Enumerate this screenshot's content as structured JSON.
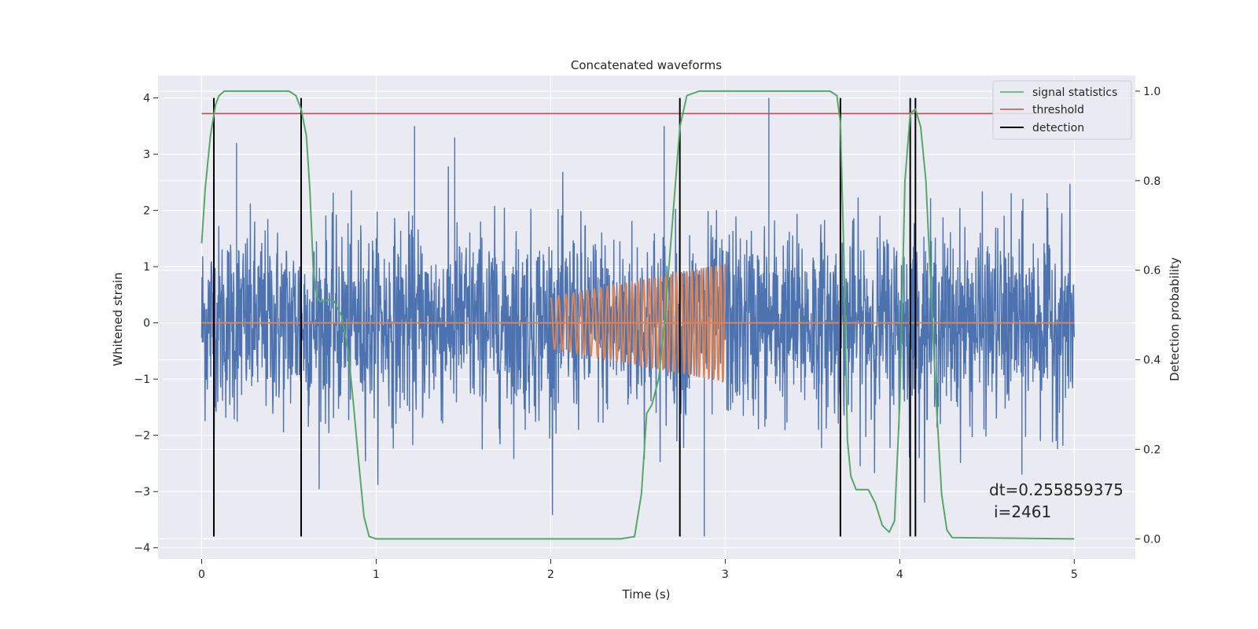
{
  "chart_data": {
    "type": "line",
    "title": "Concatenated waveforms",
    "xlabel": "Time (s)",
    "ylabel": "Whitened strain",
    "ylabel_right": "Detection probability",
    "xlim": [
      -0.25,
      5.35
    ],
    "ylim": [
      -4.2,
      4.4
    ],
    "ylim_right": [
      -0.045,
      1.035
    ],
    "x_ticks": [
      0,
      1,
      2,
      3,
      4,
      5
    ],
    "y_ticks": [
      -4,
      -3,
      -2,
      -1,
      0,
      1,
      2,
      3,
      4
    ],
    "y_ticks_right": [
      0.0,
      0.2,
      0.4,
      0.6,
      0.8,
      1.0
    ],
    "grid": true,
    "legend_position": "top-right",
    "colors": {
      "noise": "#4c72b0",
      "injection": "#dd8452",
      "signal_statistics": "#55a868",
      "threshold": "#c44e52",
      "detection": "#000000",
      "plot_bg": "#eaeaf2",
      "grid": "#ffffff"
    },
    "series": [
      {
        "name": "signal statistics",
        "axis": "right",
        "x": [
          0.0,
          0.02,
          0.05,
          0.08,
          0.1,
          0.13,
          0.16,
          0.2,
          0.3,
          0.4,
          0.5,
          0.54,
          0.57,
          0.6,
          0.62,
          0.64,
          0.66,
          0.68,
          0.7,
          0.73,
          0.76,
          0.8,
          0.84,
          0.87,
          0.9,
          0.93,
          0.96,
          1.0,
          1.5,
          2.0,
          2.4,
          2.48,
          2.52,
          2.55,
          2.58,
          2.62,
          2.66,
          2.7,
          2.74,
          2.78,
          2.85,
          3.0,
          3.3,
          3.6,
          3.64,
          3.66,
          3.68,
          3.7,
          3.72,
          3.75,
          3.78,
          3.82,
          3.86,
          3.9,
          3.94,
          3.97,
          4.0,
          4.03,
          4.06,
          4.09,
          4.12,
          4.15,
          4.18,
          4.21,
          4.24,
          4.27,
          4.3,
          4.5,
          5.0
        ],
        "values": [
          0.66,
          0.78,
          0.9,
          0.97,
          0.99,
          1.0,
          1.0,
          1.0,
          1.0,
          1.0,
          1.0,
          0.99,
          0.96,
          0.9,
          0.78,
          0.6,
          0.54,
          0.53,
          0.53,
          0.535,
          0.53,
          0.5,
          0.42,
          0.3,
          0.17,
          0.05,
          0.005,
          0.0,
          0.0,
          0.0,
          0.0,
          0.005,
          0.1,
          0.28,
          0.3,
          0.36,
          0.52,
          0.72,
          0.92,
          0.99,
          1.0,
          1.0,
          1.0,
          1.0,
          0.99,
          0.93,
          0.63,
          0.22,
          0.14,
          0.11,
          0.11,
          0.11,
          0.08,
          0.03,
          0.015,
          0.04,
          0.3,
          0.8,
          0.95,
          0.96,
          0.92,
          0.8,
          0.55,
          0.3,
          0.1,
          0.02,
          0.003,
          0.002,
          0.0
        ]
      },
      {
        "name": "threshold",
        "axis": "right",
        "x": [
          0,
          5
        ],
        "values": [
          0.95,
          0.95
        ]
      },
      {
        "name": "detection",
        "axis": "left",
        "type": "vlines",
        "x": [
          0.07,
          0.57,
          2.74,
          3.66,
          4.06,
          4.09
        ],
        "y_range": [
          -3.8,
          4.0
        ]
      },
      {
        "axis": "left",
        "type": "noise",
        "x_range": [
          0,
          5
        ],
        "amplitude_typical": 1.0,
        "peak": 4.0,
        "min": -3.9
      },
      {
        "axis": "left",
        "type": "chirp",
        "x_range": [
          2.0,
          3.0
        ],
        "amplitude_start": 0.45,
        "amplitude_end": 1.05,
        "baseline_range": [
          0,
          5
        ],
        "baseline_value": 0.0
      }
    ],
    "annotations": [
      {
        "text": "dt=0.255859375"
      },
      {
        "text": "i=2461"
      }
    ]
  }
}
